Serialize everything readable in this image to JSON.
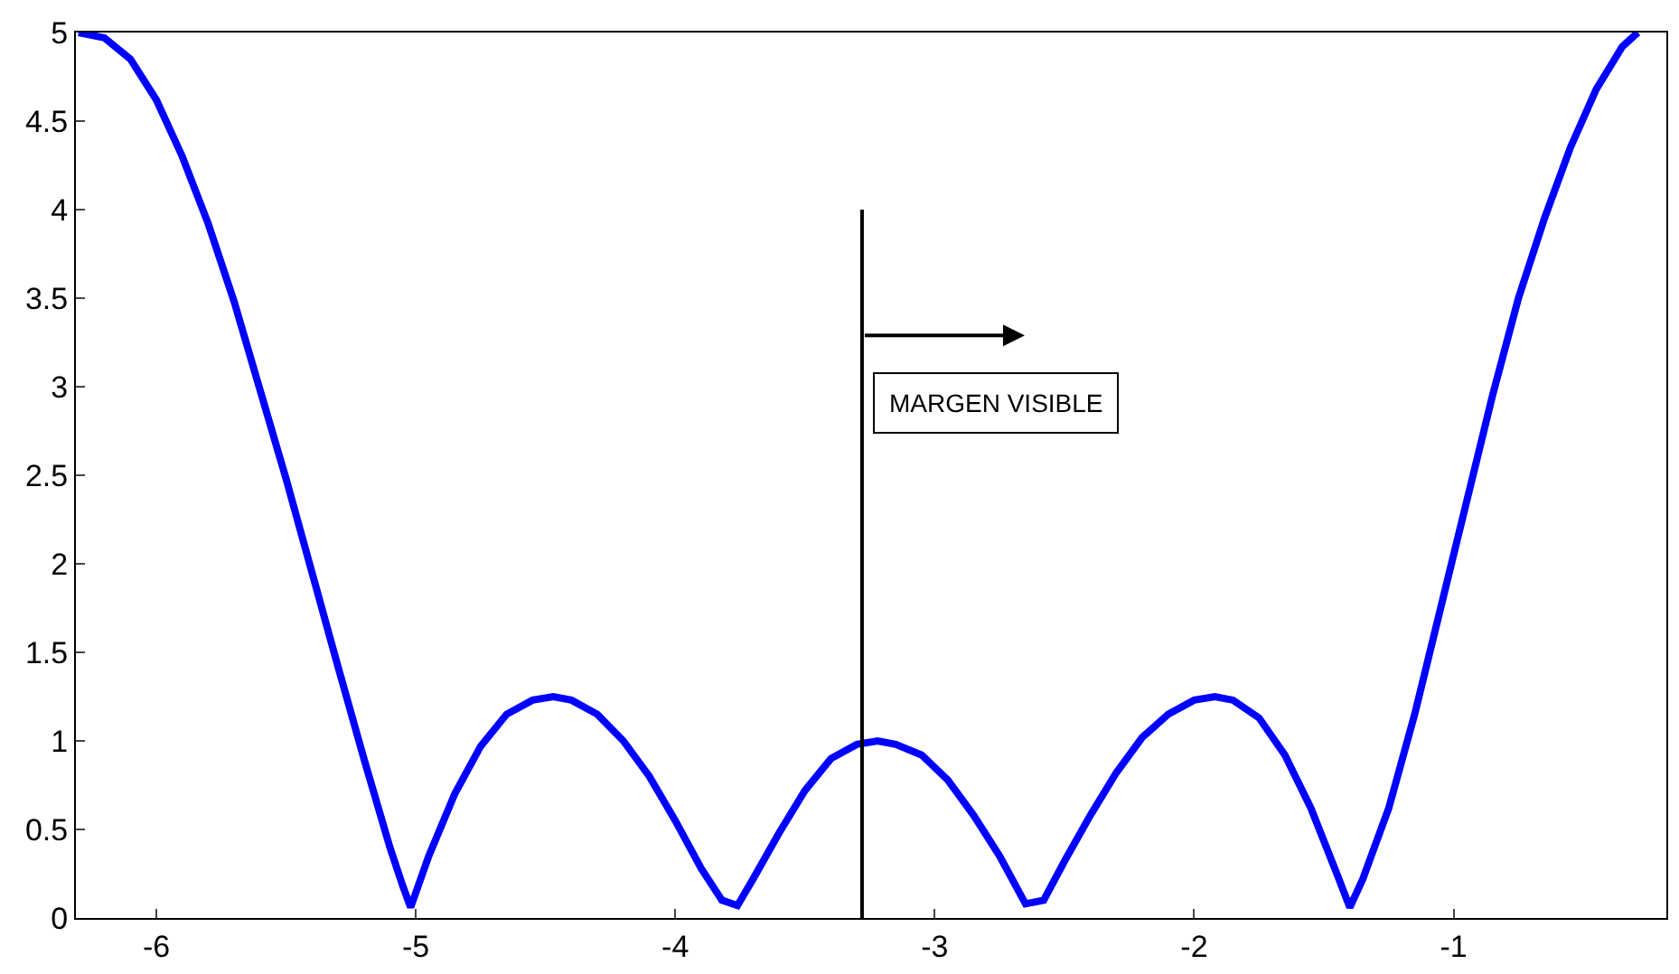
{
  "chart_data": {
    "type": "line",
    "xlim": [
      -6.31,
      -0.18
    ],
    "xticks": [
      -6,
      -5,
      -4,
      -3,
      -2,
      -1
    ],
    "ylim": [
      0,
      5
    ],
    "yticks": [
      0,
      0.5,
      1,
      1.5,
      2,
      2.5,
      3,
      3.5,
      4,
      4.5,
      5
    ],
    "marker": "none",
    "line_style": "solid",
    "annotations": [
      {
        "text": "MARGEN VISIBLE",
        "x": -3.28,
        "y": 3.29
      }
    ],
    "series": [
      {
        "color": "#0000ff",
        "x": [
          -6.3,
          -6.2,
          -6.1,
          -6.0,
          -5.9,
          -5.8,
          -5.7,
          -5.6,
          -5.5,
          -5.4,
          -5.3,
          -5.2,
          -5.1,
          -5.05,
          -5.02,
          -4.95,
          -4.85,
          -4.75,
          -4.65,
          -4.55,
          -4.47,
          -4.4,
          -4.3,
          -4.2,
          -4.1,
          -4.0,
          -3.9,
          -3.82,
          -3.76,
          -3.7,
          -3.6,
          -3.5,
          -3.4,
          -3.3,
          -3.22,
          -3.15,
          -3.05,
          -2.95,
          -2.85,
          -2.75,
          -2.65,
          -2.58,
          -2.5,
          -2.4,
          -2.3,
          -2.2,
          -2.1,
          -2.0,
          -1.92,
          -1.85,
          -1.75,
          -1.65,
          -1.55,
          -1.45,
          -1.4,
          -1.35,
          -1.25,
          -1.15,
          -1.05,
          -0.95,
          -0.85,
          -0.75,
          -0.65,
          -0.55,
          -0.45,
          -0.35,
          -0.29
        ],
        "values": [
          5.0,
          4.97,
          4.85,
          4.62,
          4.3,
          3.92,
          3.48,
          2.98,
          2.48,
          1.95,
          1.42,
          0.9,
          0.4,
          0.18,
          0.06,
          0.35,
          0.7,
          0.97,
          1.15,
          1.23,
          1.25,
          1.23,
          1.15,
          1.0,
          0.8,
          0.55,
          0.28,
          0.1,
          0.07,
          0.22,
          0.48,
          0.72,
          0.9,
          0.98,
          1.0,
          0.98,
          0.92,
          0.78,
          0.58,
          0.35,
          0.08,
          0.1,
          0.32,
          0.58,
          0.82,
          1.02,
          1.15,
          1.23,
          1.25,
          1.23,
          1.13,
          0.92,
          0.62,
          0.25,
          0.06,
          0.22,
          0.62,
          1.15,
          1.75,
          2.35,
          2.95,
          3.5,
          3.95,
          4.35,
          4.68,
          4.92,
          5.0
        ]
      },
      {
        "color": "#000000",
        "x": [
          -3.28,
          -3.28
        ],
        "values": [
          0,
          4
        ]
      }
    ]
  }
}
